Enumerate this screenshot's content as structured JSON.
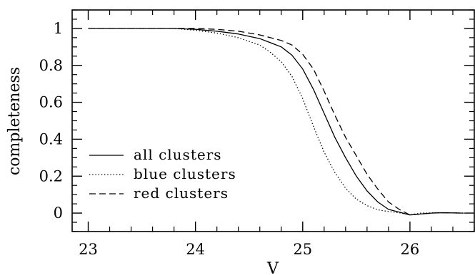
{
  "chart_data": {
    "type": "line",
    "title": "",
    "xlabel": "V",
    "ylabel": "completeness",
    "xlim": [
      22.85,
      26.6
    ],
    "ylim": [
      -0.1,
      1.1
    ],
    "x_ticks": [
      23,
      24,
      25,
      26
    ],
    "x_tick_labels": [
      "23",
      "24",
      "25",
      "26"
    ],
    "y_ticks": [
      0,
      0.2,
      0.4,
      0.6,
      0.8,
      1.0
    ],
    "y_tick_labels": [
      "0",
      "0.2",
      "0.4",
      "0.6",
      "0.8",
      "1"
    ],
    "x_minor_step": 0.2,
    "y_minor_step": 0.05,
    "grid": false,
    "legend_position": "left",
    "series": [
      {
        "name": "all clusters",
        "style": "solid",
        "x": [
          23.0,
          23.5,
          23.8,
          24.0,
          24.2,
          24.4,
          24.6,
          24.8,
          24.9,
          25.0,
          25.1,
          25.2,
          25.3,
          25.4,
          25.5,
          25.6,
          25.7,
          25.8,
          25.9,
          26.0,
          26.1,
          26.2,
          26.3,
          26.5
        ],
        "y": [
          1.0,
          1.0,
          1.0,
          0.995,
          0.985,
          0.97,
          0.945,
          0.9,
          0.855,
          0.78,
          0.67,
          0.54,
          0.41,
          0.3,
          0.2,
          0.12,
          0.06,
          0.02,
          0.005,
          -0.01,
          -0.005,
          0.0,
          0.002,
          0.0
        ]
      },
      {
        "name": "blue clusters",
        "style": "dotted",
        "x": [
          23.0,
          23.5,
          23.8,
          24.0,
          24.2,
          24.4,
          24.6,
          24.7,
          24.8,
          24.9,
          25.0,
          25.1,
          25.2,
          25.3,
          25.4,
          25.5,
          25.6,
          25.7,
          25.8,
          25.9,
          26.0,
          26.1,
          26.3,
          26.5
        ],
        "y": [
          1.0,
          1.0,
          1.0,
          0.99,
          0.975,
          0.95,
          0.91,
          0.87,
          0.82,
          0.74,
          0.62,
          0.47,
          0.33,
          0.22,
          0.135,
          0.075,
          0.04,
          0.018,
          0.008,
          0.002,
          -0.01,
          0.0,
          0.002,
          0.0
        ]
      },
      {
        "name": "red clusters",
        "style": "dashed",
        "x": [
          23.0,
          23.5,
          23.8,
          24.0,
          24.2,
          24.4,
          24.6,
          24.8,
          24.9,
          25.0,
          25.1,
          25.2,
          25.3,
          25.4,
          25.5,
          25.6,
          25.7,
          25.8,
          25.9,
          26.0,
          26.1,
          26.2,
          26.3,
          26.5
        ],
        "y": [
          1.0,
          1.0,
          1.0,
          1.0,
          0.995,
          0.985,
          0.965,
          0.935,
          0.91,
          0.86,
          0.78,
          0.66,
          0.53,
          0.41,
          0.31,
          0.21,
          0.13,
          0.06,
          0.02,
          -0.01,
          -0.005,
          0.0,
          0.002,
          0.0
        ]
      }
    ]
  }
}
